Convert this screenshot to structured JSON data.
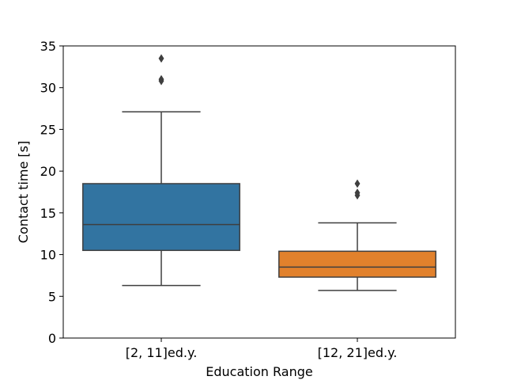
{
  "chart_data": {
    "type": "box",
    "title": "",
    "xlabel": "Education Range",
    "ylabel": "Contact time [s]",
    "ylim": [
      0,
      35
    ],
    "yticks": [
      0,
      5,
      10,
      15,
      20,
      25,
      30,
      35
    ],
    "categories": [
      "[2, 11]ed.y.",
      "[12, 21]ed.y."
    ],
    "boxes": [
      {
        "category": "[2, 11]ed.y.",
        "whisker_low": 6.3,
        "q1": 10.5,
        "median": 13.6,
        "q3": 18.5,
        "whisker_high": 27.1,
        "outliers": [
          30.8,
          31.0,
          33.5
        ],
        "color": "#3274a1"
      },
      {
        "category": "[12, 21]ed.y.",
        "whisker_low": 5.7,
        "q1": 7.3,
        "median": 8.5,
        "q3": 10.4,
        "whisker_high": 13.8,
        "outliers": [
          17.1,
          17.4,
          18.5
        ],
        "color": "#e1812c"
      }
    ],
    "grid": false,
    "legend": "none"
  }
}
